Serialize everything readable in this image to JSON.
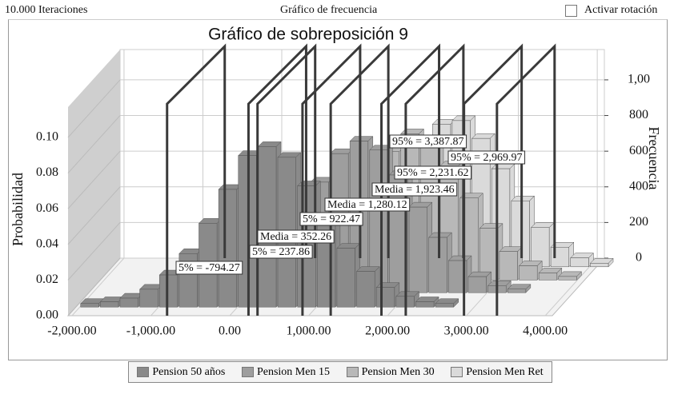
{
  "header": {
    "iterations": "10.000 Iteraciones",
    "view": "Gráfico de frecuencia",
    "rotate": "Activar rotación"
  },
  "chart_data": {
    "type": "histogram3d",
    "title": "Gráfico de sobreposición 9",
    "ylabel": "Probabilidad",
    "y2label": "Frecuencia",
    "xlim": [
      -2050,
      4090
    ],
    "xticks": [
      {
        "value": -2000,
        "label": "-2,000.00"
      },
      {
        "value": -1000,
        "label": "-1,000.00"
      },
      {
        "value": 0,
        "label": "0.00"
      },
      {
        "value": 1000,
        "label": "1,000.00"
      },
      {
        "value": 2000,
        "label": "2,000.00"
      },
      {
        "value": 3000,
        "label": "3,000.00"
      },
      {
        "value": 4000,
        "label": "4,000.00"
      }
    ],
    "ylim": [
      0,
      0.117
    ],
    "yticks": [
      {
        "value": 0,
        "label": "0.00"
      },
      {
        "value": 0.02,
        "label": "0.02"
      },
      {
        "value": 0.04,
        "label": "0.04"
      },
      {
        "value": 0.06,
        "label": "0.06"
      },
      {
        "value": 0.08,
        "label": "0.08"
      },
      {
        "value": 0.1,
        "label": "0.10"
      }
    ],
    "y2lim": [
      0,
      1170
    ],
    "y2ticks": [
      0,
      200,
      400,
      600,
      800,
      {
        "value": 1000,
        "label": "1,00"
      }
    ],
    "grid": true,
    "series": [
      {
        "name": "Pension 50 años",
        "color": "#8a8a8a",
        "bins": [
          -2000,
          -1750,
          -1500,
          -1250,
          -1000,
          -750,
          -500,
          -250,
          0,
          250,
          500,
          750,
          1000,
          1250,
          1500,
          1750,
          2000,
          2250,
          2500,
          2750
        ],
        "values": [
          0.002,
          0.003,
          0.005,
          0.01,
          0.018,
          0.03,
          0.047,
          0.066,
          0.085,
          0.09,
          0.084,
          0.068,
          0.05,
          0.033,
          0.02,
          0.011,
          0.006,
          0.003,
          0.002
        ]
      },
      {
        "name": "Pension Men 15",
        "color": "#9e9e9e",
        "bins": [
          -750,
          -500,
          -250,
          0,
          250,
          500,
          750,
          1000,
          1250,
          1500,
          1750,
          2000,
          2250,
          2500,
          2750,
          3000,
          3250,
          3500
        ],
        "values": [
          0.002,
          0.004,
          0.008,
          0.015,
          0.027,
          0.043,
          0.062,
          0.078,
          0.085,
          0.08,
          0.066,
          0.048,
          0.031,
          0.018,
          0.009,
          0.004,
          0.002
        ]
      },
      {
        "name": "Pension Men 30",
        "color": "#b8b8b8",
        "bins": [
          0,
          250,
          500,
          750,
          1000,
          1250,
          1500,
          1750,
          2000,
          2250,
          2500,
          2750,
          3000,
          3250,
          3500,
          3750,
          4000
        ],
        "values": [
          0.002,
          0.005,
          0.01,
          0.02,
          0.035,
          0.055,
          0.072,
          0.082,
          0.078,
          0.064,
          0.046,
          0.029,
          0.016,
          0.008,
          0.004,
          0.002
        ]
      },
      {
        "name": "Pension Men Ret",
        "color": "#dadada",
        "bins": [
          250,
          500,
          750,
          1000,
          1250,
          1500,
          1750,
          2000,
          2250,
          2500,
          2750,
          3000,
          3250,
          3500,
          3750,
          4000,
          4250
        ],
        "values": [
          0.002,
          0.004,
          0.009,
          0.018,
          0.032,
          0.05,
          0.068,
          0.08,
          0.082,
          0.072,
          0.055,
          0.037,
          0.022,
          0.011,
          0.005,
          0.002
        ]
      }
    ],
    "annotations": [
      {
        "label": "5% = -794.27",
        "x": -794.27
      },
      {
        "label": "5% = 237.86",
        "x": 237.86
      },
      {
        "label": "Media = 352.26",
        "x": 352.26
      },
      {
        "label": "5% = 922.47",
        "x": 922.47
      },
      {
        "label": "Media = 1,280.12",
        "x": 1280.12
      },
      {
        "label": "Media = 1,923.46",
        "x": 1923.46
      },
      {
        "label": "95% = 2,231.62",
        "x": 2231.62
      },
      {
        "label": "95% = 2,969.97",
        "x": 2969.97
      },
      {
        "label": "95% = 3,387.87",
        "x": 3387.87
      }
    ]
  }
}
